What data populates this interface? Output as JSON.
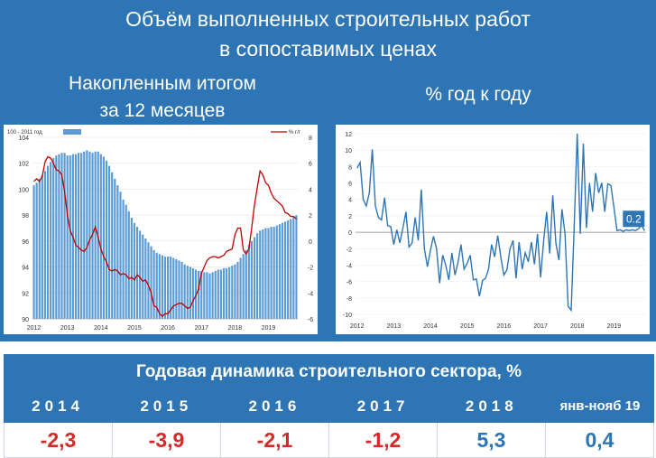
{
  "title": {
    "line1": "Объём выполненных строительных работ",
    "line2": "в сопоставимых ценах"
  },
  "left_subtitle": {
    "line1": "Накопленным итогом",
    "line2": "за 12 месяцев"
  },
  "right_subtitle": "% год к году",
  "table": {
    "header": "Годовая динамика строительного сектора, %",
    "years": [
      "2014",
      "2015",
      "2016",
      "2017",
      "2018",
      "янв-нояб 19"
    ],
    "values": [
      "-2,3",
      "-3,9",
      "-2,1",
      "-1,2",
      "5,3",
      "0,4"
    ]
  },
  "colors": {
    "panel": "#2e75b6",
    "bars": "#5b9bd5",
    "red_line": "#c00000",
    "negative": "#d62828",
    "positive": "#2e75b6"
  },
  "chart_data": [
    {
      "type": "bar",
      "legend": {
        "bars": "100 - 2011 год",
        "line": "% г/г"
      },
      "x_ticks": [
        "2012",
        "2013",
        "2014",
        "2015",
        "2016",
        "2017",
        "2018",
        "2019"
      ],
      "y_left": {
        "ticks": [
          "90",
          "92",
          "94",
          "96",
          "98",
          "100",
          "102",
          "104"
        ],
        "range": [
          90,
          104
        ]
      },
      "y_right": {
        "ticks": [
          "-6",
          "-4",
          "-2",
          "0",
          "2",
          "4",
          "6",
          "8"
        ],
        "range": [
          -6,
          8
        ]
      },
      "start_period": "2012-01",
      "series": [
        {
          "name": "100 - 2011 год",
          "kind": "bar",
          "values": [
            100.3,
            100.5,
            100.8,
            101.1,
            101.4,
            101.8,
            102.1,
            102.4,
            102.6,
            102.7,
            102.8,
            102.8,
            102.6,
            102.6,
            102.7,
            102.7,
            102.8,
            102.8,
            102.9,
            103.0,
            102.9,
            102.8,
            102.9,
            102.9,
            102.7,
            102.5,
            102.2,
            101.8,
            101.3,
            100.8,
            100.3,
            99.8,
            99.2,
            98.8,
            98.3,
            97.8,
            97.4,
            97.1,
            96.8,
            96.5,
            96.2,
            95.9,
            95.6,
            95.3,
            95.1,
            95.0,
            94.9,
            94.8,
            94.8,
            94.8,
            94.7,
            94.6,
            94.5,
            94.4,
            94.2,
            94.1,
            94.0,
            93.9,
            93.8,
            93.7,
            93.7,
            93.6,
            93.6,
            93.5,
            93.6,
            93.7,
            93.8,
            93.8,
            93.9,
            93.9,
            94.0,
            94.1,
            94.2,
            94.4,
            94.7,
            95.0,
            95.3,
            95.7,
            96.0,
            96.3,
            96.6,
            96.8,
            96.9,
            97.0,
            97.0,
            97.1,
            97.1,
            97.2,
            97.3,
            97.4,
            97.5,
            97.6,
            97.7,
            97.9,
            98.0
          ]
        },
        {
          "name": "% г/г",
          "kind": "line",
          "values": [
            4.6,
            4.8,
            4.6,
            5.0,
            6.1,
            6.5,
            6.4,
            6.0,
            5.5,
            5.4,
            5.1,
            3.8,
            2.0,
            0.8,
            0.3,
            -0.3,
            -0.5,
            -0.7,
            -0.8,
            -0.5,
            0.1,
            0.5,
            1.1,
            0.3,
            -0.6,
            -1.2,
            -1.6,
            -2.2,
            -2.3,
            -2.2,
            -2.3,
            -2.6,
            -2.5,
            -2.6,
            -2.9,
            -2.8,
            -3.0,
            -2.6,
            -2.8,
            -3.1,
            -3.0,
            -3.4,
            -4.0,
            -5.0,
            -5.1,
            -5.6,
            -5.8,
            -5.6,
            -5.6,
            -5.3,
            -5.0,
            -4.9,
            -4.8,
            -4.8,
            -5.0,
            -5.2,
            -5.1,
            -4.6,
            -4.2,
            -3.7,
            -2.5,
            -2.0,
            -1.5,
            -1.3,
            -1.2,
            -1.2,
            -1.3,
            -1.2,
            -1.1,
            -0.8,
            -0.7,
            -0.6,
            0.5,
            1.0,
            1.0,
            -0.7,
            -1.0,
            -0.6,
            1.0,
            2.8,
            4.1,
            5.4,
            5.1,
            4.5,
            4.3,
            3.7,
            3.3,
            3.1,
            2.9,
            2.7,
            2.2,
            2.1,
            1.9,
            1.9,
            1.7
          ]
        }
      ]
    },
    {
      "type": "line",
      "data_label": "0.2",
      "x_ticks": [
        "2012",
        "2013",
        "2014",
        "2015",
        "2016",
        "2017",
        "2018",
        "2019"
      ],
      "y_ticks": [
        "-10",
        "-8",
        "-6",
        "-4",
        "-2",
        "0",
        "2",
        "4",
        "6",
        "8",
        "10",
        "12"
      ],
      "ylim": [
        -10,
        12
      ],
      "start_period": "2012-01",
      "series": [
        {
          "name": "% год к году",
          "values": [
            7.8,
            8.5,
            4.0,
            3.2,
            4.8,
            10.1,
            3.2,
            1.8,
            1.5,
            4.2,
            0.8,
            0.7,
            -1.5,
            0.3,
            -1.3,
            0.5,
            2.5,
            -1.8,
            -1.3,
            1.8,
            -1.0,
            5.2,
            -2.0,
            -4.2,
            -2.2,
            -0.5,
            -2.0,
            -6.2,
            -2.8,
            -4.0,
            -5.8,
            -2.5,
            -5.2,
            -3.7,
            -1.5,
            -4.5,
            -3.8,
            -2.8,
            -5.8,
            -5.7,
            -7.8,
            -5.9,
            -5.6,
            -4.5,
            -1.5,
            -3.0,
            -0.4,
            -3.0,
            -5.2,
            -4.6,
            -2.0,
            -1.0,
            -5.6,
            -1.2,
            -4.5,
            -2.5,
            -3.6,
            -1.2,
            -3.9,
            -0.2,
            -5.5,
            -1.0,
            2.5,
            -2.6,
            4.5,
            -1.3,
            -3.4,
            2.8,
            -0.2,
            -9.0,
            -9.5,
            0.5,
            12.0,
            -0.2,
            10.8,
            0.5,
            6.0,
            2.5,
            7.2,
            4.8,
            6.0,
            2.5,
            5.9,
            5.7,
            3.0,
            0.2,
            0.3,
            0.1,
            0.3,
            0.2,
            0.3,
            0.2,
            0.4,
            0.9,
            0.2
          ]
        }
      ]
    }
  ]
}
